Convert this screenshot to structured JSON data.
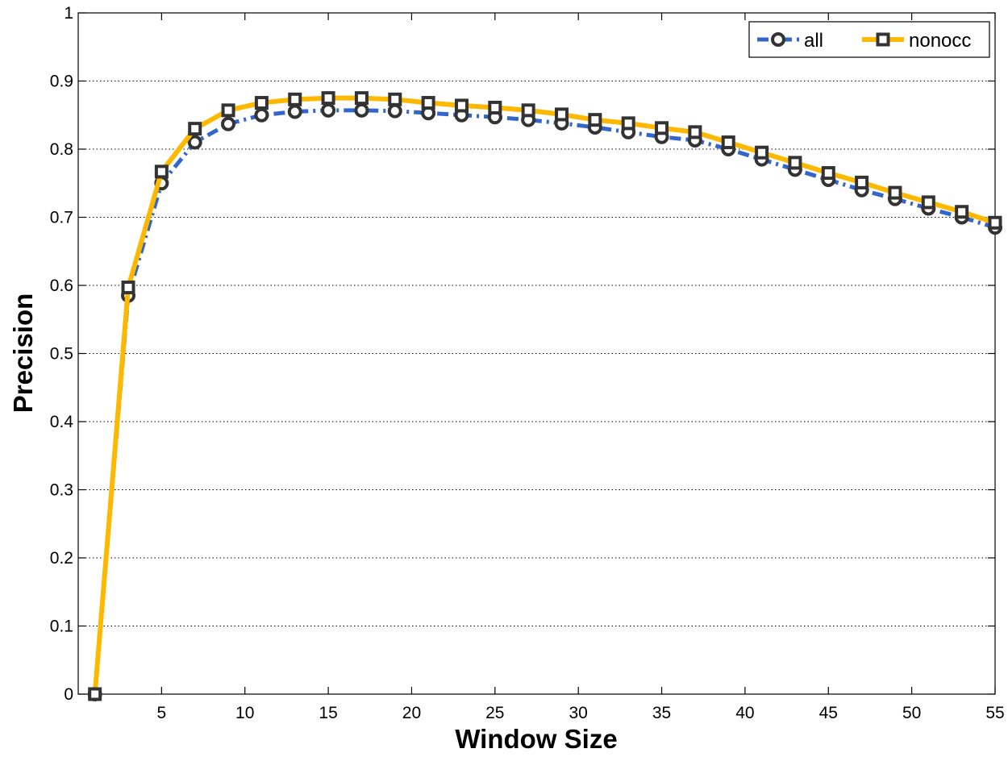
{
  "chart_data": {
    "type": "line",
    "title": "",
    "xlabel": "Window Size",
    "ylabel": "Precision",
    "xlim": [
      0,
      55
    ],
    "ylim": [
      0,
      1
    ],
    "xticks": [
      5,
      10,
      15,
      20,
      25,
      30,
      35,
      40,
      45,
      50,
      55
    ],
    "xtick_labels": [
      "5",
      "10",
      "15",
      "20",
      "25",
      "30",
      "35",
      "40",
      "45",
      "50",
      "55"
    ],
    "yticks": [
      0,
      0.1,
      0.2,
      0.3,
      0.4,
      0.5,
      0.6,
      0.7,
      0.8,
      0.9,
      1
    ],
    "ytick_labels": [
      "0",
      "0.1",
      "0.2",
      "0.3",
      "0.4",
      "0.5",
      "0.6",
      "0.7",
      "0.8",
      "0.9",
      "1"
    ],
    "grid": "horizontal dotted",
    "legend_position": "top-right",
    "x": [
      1,
      3,
      5,
      7,
      9,
      11,
      13,
      15,
      17,
      19,
      21,
      23,
      25,
      27,
      29,
      31,
      33,
      35,
      37,
      39,
      41,
      43,
      45,
      47,
      49,
      51,
      53,
      55
    ],
    "series": [
      {
        "name": "all",
        "line_color": "#3366cc",
        "line_style": "dash-dot",
        "marker": "circle",
        "marker_color": "#333333",
        "values": [
          0.0,
          0.585,
          0.75,
          0.81,
          0.837,
          0.85,
          0.855,
          0.857,
          0.857,
          0.856,
          0.853,
          0.85,
          0.847,
          0.843,
          0.838,
          0.832,
          0.825,
          0.818,
          0.813,
          0.8,
          0.785,
          0.77,
          0.755,
          0.74,
          0.727,
          0.713,
          0.7,
          0.685
        ]
      },
      {
        "name": "nonocc",
        "line_color": "#ffb800",
        "line_style": "solid",
        "marker": "square",
        "marker_color": "#333333",
        "values": [
          0.0,
          0.597,
          0.767,
          0.83,
          0.857,
          0.868,
          0.873,
          0.875,
          0.875,
          0.873,
          0.868,
          0.864,
          0.861,
          0.857,
          0.851,
          0.843,
          0.838,
          0.831,
          0.825,
          0.81,
          0.795,
          0.78,
          0.765,
          0.751,
          0.736,
          0.722,
          0.708,
          0.692
        ]
      }
    ]
  }
}
